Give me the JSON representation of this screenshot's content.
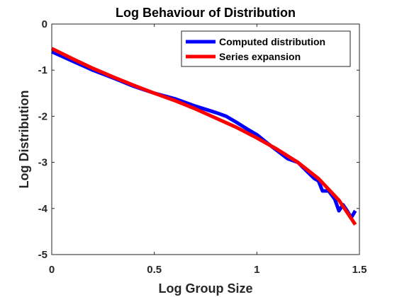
{
  "chart_data": {
    "type": "line",
    "title": "Log Behaviour of Distribution",
    "xlabel": "Log Group Size",
    "ylabel": "Log Distribution",
    "xlim": [
      0,
      1.5
    ],
    "ylim": [
      -5,
      0
    ],
    "xticks": [
      0,
      0.5,
      1,
      1.5
    ],
    "xtick_labels": [
      "0",
      "0.5",
      "1",
      "1.5"
    ],
    "yticks": [
      0,
      -1,
      -2,
      -3,
      -4,
      -5
    ],
    "ytick_labels": [
      "0",
      "-1",
      "-2",
      "-3",
      "-4",
      "-5"
    ],
    "grid": false,
    "legend_position": "top-right",
    "series": [
      {
        "name": "Computed distribution",
        "color": "#0000ff",
        "x": [
          0,
          0.1,
          0.2,
          0.3,
          0.4,
          0.5,
          0.6,
          0.7,
          0.8,
          0.85,
          0.9,
          0.95,
          1.0,
          1.05,
          1.1,
          1.15,
          1.2,
          1.25,
          1.28,
          1.3,
          1.32,
          1.35,
          1.38,
          1.4,
          1.42,
          1.44,
          1.46,
          1.48
        ],
        "y": [
          -0.6,
          -0.8,
          -1.0,
          -1.17,
          -1.35,
          -1.5,
          -1.62,
          -1.78,
          -1.92,
          -2.0,
          -2.13,
          -2.27,
          -2.4,
          -2.58,
          -2.75,
          -2.92,
          -3.0,
          -3.22,
          -3.35,
          -3.4,
          -3.62,
          -3.62,
          -3.8,
          -4.05,
          -3.92,
          -4.05,
          -4.2,
          -4.05
        ]
      },
      {
        "name": "Series expansion",
        "color": "#ff0000",
        "x": [
          0,
          0.1,
          0.2,
          0.3,
          0.4,
          0.5,
          0.6,
          0.7,
          0.8,
          0.9,
          1.0,
          1.1,
          1.2,
          1.3,
          1.4,
          1.48
        ],
        "y": [
          -0.53,
          -0.75,
          -0.96,
          -1.15,
          -1.33,
          -1.5,
          -1.66,
          -1.84,
          -2.04,
          -2.24,
          -2.47,
          -2.72,
          -3.0,
          -3.35,
          -3.82,
          -4.35
        ]
      }
    ]
  }
}
